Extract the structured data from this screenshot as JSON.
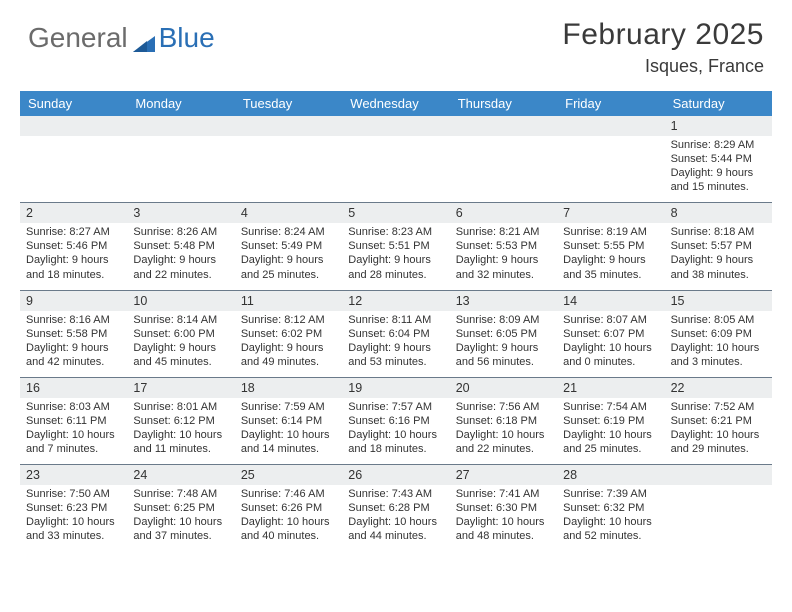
{
  "logo": {
    "text1": "General",
    "text2": "Blue"
  },
  "title": "February 2025",
  "location": "Isques, France",
  "colors": {
    "header_bg": "#3b87c8",
    "header_fg": "#ffffff",
    "numrow_bg": "#eceeef",
    "divider": "#6a7a8a",
    "text": "#3a3a3a"
  },
  "day_names": [
    "Sunday",
    "Monday",
    "Tuesday",
    "Wednesday",
    "Thursday",
    "Friday",
    "Saturday"
  ],
  "weeks": [
    {
      "nums": [
        "",
        "",
        "",
        "",
        "",
        "",
        "1"
      ],
      "cells": [
        "",
        "",
        "",
        "",
        "",
        "",
        "Sunrise: 8:29 AM\nSunset: 5:44 PM\nDaylight: 9 hours and 15 minutes."
      ]
    },
    {
      "nums": [
        "2",
        "3",
        "4",
        "5",
        "6",
        "7",
        "8"
      ],
      "cells": [
        "Sunrise: 8:27 AM\nSunset: 5:46 PM\nDaylight: 9 hours and 18 minutes.",
        "Sunrise: 8:26 AM\nSunset: 5:48 PM\nDaylight: 9 hours and 22 minutes.",
        "Sunrise: 8:24 AM\nSunset: 5:49 PM\nDaylight: 9 hours and 25 minutes.",
        "Sunrise: 8:23 AM\nSunset: 5:51 PM\nDaylight: 9 hours and 28 minutes.",
        "Sunrise: 8:21 AM\nSunset: 5:53 PM\nDaylight: 9 hours and 32 minutes.",
        "Sunrise: 8:19 AM\nSunset: 5:55 PM\nDaylight: 9 hours and 35 minutes.",
        "Sunrise: 8:18 AM\nSunset: 5:57 PM\nDaylight: 9 hours and 38 minutes."
      ]
    },
    {
      "nums": [
        "9",
        "10",
        "11",
        "12",
        "13",
        "14",
        "15"
      ],
      "cells": [
        "Sunrise: 8:16 AM\nSunset: 5:58 PM\nDaylight: 9 hours and 42 minutes.",
        "Sunrise: 8:14 AM\nSunset: 6:00 PM\nDaylight: 9 hours and 45 minutes.",
        "Sunrise: 8:12 AM\nSunset: 6:02 PM\nDaylight: 9 hours and 49 minutes.",
        "Sunrise: 8:11 AM\nSunset: 6:04 PM\nDaylight: 9 hours and 53 minutes.",
        "Sunrise: 8:09 AM\nSunset: 6:05 PM\nDaylight: 9 hours and 56 minutes.",
        "Sunrise: 8:07 AM\nSunset: 6:07 PM\nDaylight: 10 hours and 0 minutes.",
        "Sunrise: 8:05 AM\nSunset: 6:09 PM\nDaylight: 10 hours and 3 minutes."
      ]
    },
    {
      "nums": [
        "16",
        "17",
        "18",
        "19",
        "20",
        "21",
        "22"
      ],
      "cells": [
        "Sunrise: 8:03 AM\nSunset: 6:11 PM\nDaylight: 10 hours and 7 minutes.",
        "Sunrise: 8:01 AM\nSunset: 6:12 PM\nDaylight: 10 hours and 11 minutes.",
        "Sunrise: 7:59 AM\nSunset: 6:14 PM\nDaylight: 10 hours and 14 minutes.",
        "Sunrise: 7:57 AM\nSunset: 6:16 PM\nDaylight: 10 hours and 18 minutes.",
        "Sunrise: 7:56 AM\nSunset: 6:18 PM\nDaylight: 10 hours and 22 minutes.",
        "Sunrise: 7:54 AM\nSunset: 6:19 PM\nDaylight: 10 hours and 25 minutes.",
        "Sunrise: 7:52 AM\nSunset: 6:21 PM\nDaylight: 10 hours and 29 minutes."
      ]
    },
    {
      "nums": [
        "23",
        "24",
        "25",
        "26",
        "27",
        "28",
        ""
      ],
      "cells": [
        "Sunrise: 7:50 AM\nSunset: 6:23 PM\nDaylight: 10 hours and 33 minutes.",
        "Sunrise: 7:48 AM\nSunset: 6:25 PM\nDaylight: 10 hours and 37 minutes.",
        "Sunrise: 7:46 AM\nSunset: 6:26 PM\nDaylight: 10 hours and 40 minutes.",
        "Sunrise: 7:43 AM\nSunset: 6:28 PM\nDaylight: 10 hours and 44 minutes.",
        "Sunrise: 7:41 AM\nSunset: 6:30 PM\nDaylight: 10 hours and 48 minutes.",
        "Sunrise: 7:39 AM\nSunset: 6:32 PM\nDaylight: 10 hours and 52 minutes.",
        ""
      ]
    }
  ]
}
